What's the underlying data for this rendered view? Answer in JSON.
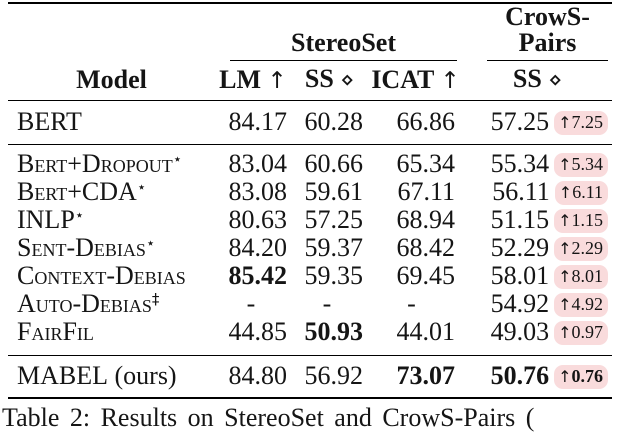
{
  "colors": {
    "highlight_bg": "#f9dbdc",
    "text": "#151515",
    "rule": "#000000"
  },
  "caption": "Table 2: Results on StereoSet and CrowS-Pairs (",
  "table": {
    "group_headers": [
      {
        "label": "StereoSet"
      },
      {
        "label": "CrowS-Pairs"
      }
    ],
    "columns": [
      {
        "label": "Model",
        "symbol": ""
      },
      {
        "label": "LM",
        "symbol": "↑"
      },
      {
        "label": "SS",
        "symbol": "⋄"
      },
      {
        "label": "ICAT",
        "symbol": "↑"
      },
      {
        "label": "SS",
        "symbol": "⋄"
      }
    ],
    "rows": [
      {
        "section": "bert",
        "model": "BERT",
        "sup": "",
        "suffix": "",
        "lm": "84.17",
        "ss": "60.28",
        "icat": "66.86",
        "cs": "57.25",
        "delta_arrow": "↑",
        "delta": "7.25",
        "bold": []
      },
      {
        "section": "baselines",
        "model": "Bert+Dropout",
        "sup": "⋆",
        "suffix": "",
        "lm": "83.04",
        "ss": "60.66",
        "icat": "65.34",
        "cs": "55.34",
        "delta_arrow": "↑",
        "delta": "5.34",
        "bold": []
      },
      {
        "section": "baselines",
        "model": "Bert+CDA",
        "sup": "⋆",
        "suffix": "",
        "lm": "83.08",
        "ss": "59.61",
        "icat": "67.11",
        "cs": "56.11",
        "delta_arrow": "↑",
        "delta": "6.11",
        "bold": []
      },
      {
        "section": "baselines",
        "model": "INLP",
        "sup": "⋆",
        "suffix": "",
        "lm": "80.63",
        "ss": "57.25",
        "icat": "68.94",
        "cs": "51.15",
        "delta_arrow": "↑",
        "delta": "1.15",
        "bold": []
      },
      {
        "section": "baselines",
        "model": "Sent-Debias",
        "sup": "⋆",
        "suffix": "",
        "lm": "84.20",
        "ss": "59.37",
        "icat": "68.42",
        "cs": "52.29",
        "delta_arrow": "↑",
        "delta": "2.29",
        "bold": []
      },
      {
        "section": "baselines",
        "model": "Context-Debias",
        "sup": "",
        "suffix": "",
        "lm": "85.42",
        "ss": "59.35",
        "icat": "69.45",
        "cs": "58.01",
        "delta_arrow": "↑",
        "delta": "8.01",
        "bold": [
          "lm"
        ]
      },
      {
        "section": "baselines",
        "model": "Auto-Debias",
        "sup": "‡",
        "suffix": "",
        "lm": "-",
        "ss": "-",
        "icat": "-",
        "cs": "54.92",
        "delta_arrow": "↑",
        "delta": "4.92",
        "bold": []
      },
      {
        "section": "baselines",
        "model": "FairFil",
        "sup": "",
        "suffix": "",
        "lm": "44.85",
        "ss": "50.93",
        "icat": "44.01",
        "cs": "49.03",
        "delta_arrow": "↑",
        "delta": "0.97",
        "bold": [
          "ss"
        ]
      },
      {
        "section": "ours",
        "model": "MABEL",
        "sup": "",
        "suffix": " (ours)",
        "lm": "84.80",
        "ss": "56.92",
        "icat": "73.07",
        "cs": "50.76",
        "delta_arrow": "↑",
        "delta": "0.76",
        "bold": [
          "icat",
          "cs",
          "delta"
        ]
      }
    ]
  }
}
